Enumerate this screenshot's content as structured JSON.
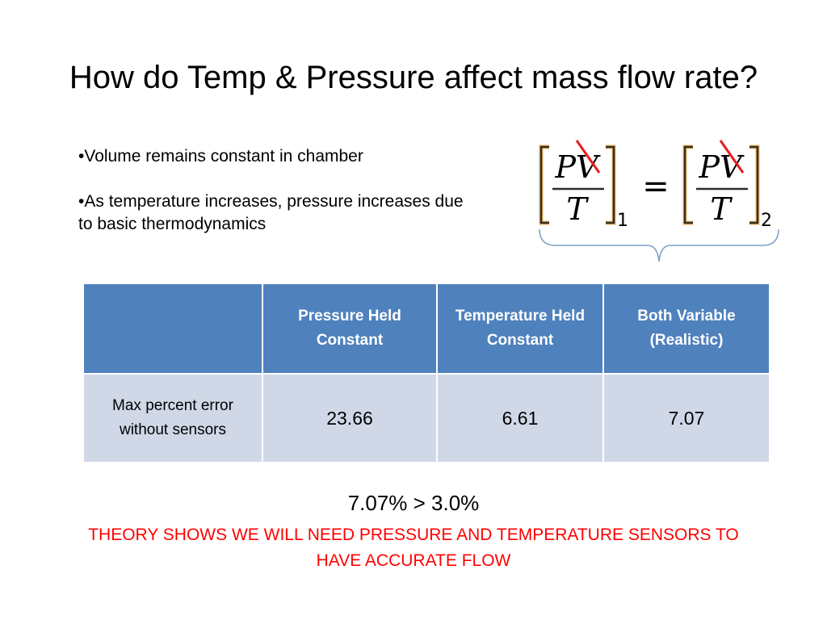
{
  "slide": {
    "title": "How do Temp & Pressure affect mass flow rate?"
  },
  "bullets": [
    "•Volume remains constant in chamber",
    "•As temperature increases, pressure increases due to basic thermodynamics"
  ],
  "equation": {
    "numerator_left": "PV",
    "denominator_left": "T",
    "subscript_left": "1",
    "equals": "=",
    "numerator_right": "PV",
    "denominator_right": "T",
    "subscript_right": "2",
    "strike_color": "#e81c1c",
    "bracket_color": "#2d2d2d",
    "highlight_color": "#f2b45a"
  },
  "table": {
    "headers": [
      "",
      "Pressure Held Constant",
      "Temperature Held Constant",
      "Both Variable (Realistic)"
    ],
    "rows": [
      {
        "label": "Max percent error without sensors",
        "values": [
          "23.66",
          "6.61",
          "7.07"
        ]
      }
    ],
    "header_color": "#4f81bd",
    "row_color": "#d0d8e8"
  },
  "result": "7.07% > 3.0%",
  "conclusion": "THEORY SHOWS WE WILL NEED PRESSURE AND TEMPERATURE SENSORS TO HAVE ACCURATE FLOW"
}
